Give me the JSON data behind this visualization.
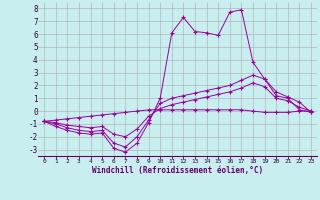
{
  "xlabel": "Windchill (Refroidissement éolien,°C)",
  "background_color": "#c8eef0",
  "grid_color": "#aaaaaa",
  "line_color": "#990099",
  "x_hours": [
    0,
    1,
    2,
    3,
    4,
    5,
    6,
    7,
    8,
    9,
    10,
    11,
    12,
    13,
    14,
    15,
    16,
    17,
    18,
    19,
    20,
    21,
    22,
    23
  ],
  "series1": [
    -0.8,
    -1.2,
    -1.5,
    -1.7,
    -1.8,
    -1.7,
    -2.9,
    -3.2,
    -2.5,
    -0.9,
    1.0,
    6.1,
    7.3,
    6.2,
    6.1,
    5.9,
    7.7,
    7.9,
    3.8,
    2.5,
    1.2,
    1.0,
    0.1,
    -0.1
  ],
  "series2": [
    -0.8,
    -1.0,
    -1.3,
    -1.5,
    -1.6,
    -1.5,
    -2.5,
    -2.8,
    -2.0,
    -0.7,
    0.6,
    1.0,
    1.2,
    1.4,
    1.6,
    1.8,
    2.0,
    2.4,
    2.8,
    2.5,
    1.5,
    1.1,
    0.7,
    -0.1
  ],
  "series3": [
    -0.8,
    -0.9,
    -1.1,
    -1.2,
    -1.3,
    -1.2,
    -1.8,
    -2.0,
    -1.4,
    -0.4,
    0.2,
    0.5,
    0.7,
    0.9,
    1.1,
    1.3,
    1.5,
    1.8,
    2.2,
    1.9,
    1.0,
    0.8,
    0.3,
    0.0
  ],
  "series4": [
    -0.8,
    -0.7,
    -0.6,
    -0.5,
    -0.4,
    -0.3,
    -0.2,
    -0.1,
    0.0,
    0.1,
    0.1,
    0.1,
    0.1,
    0.1,
    0.1,
    0.1,
    0.1,
    0.1,
    0.0,
    -0.1,
    -0.1,
    -0.1,
    0.0,
    0.0
  ],
  "ylim": [
    -3.5,
    8.5
  ],
  "yticks": [
    -3,
    -2,
    -1,
    0,
    1,
    2,
    3,
    4,
    5,
    6,
    7,
    8
  ],
  "xlim": [
    -0.5,
    23.5
  ],
  "figwidth": 3.2,
  "figheight": 2.0,
  "dpi": 100
}
